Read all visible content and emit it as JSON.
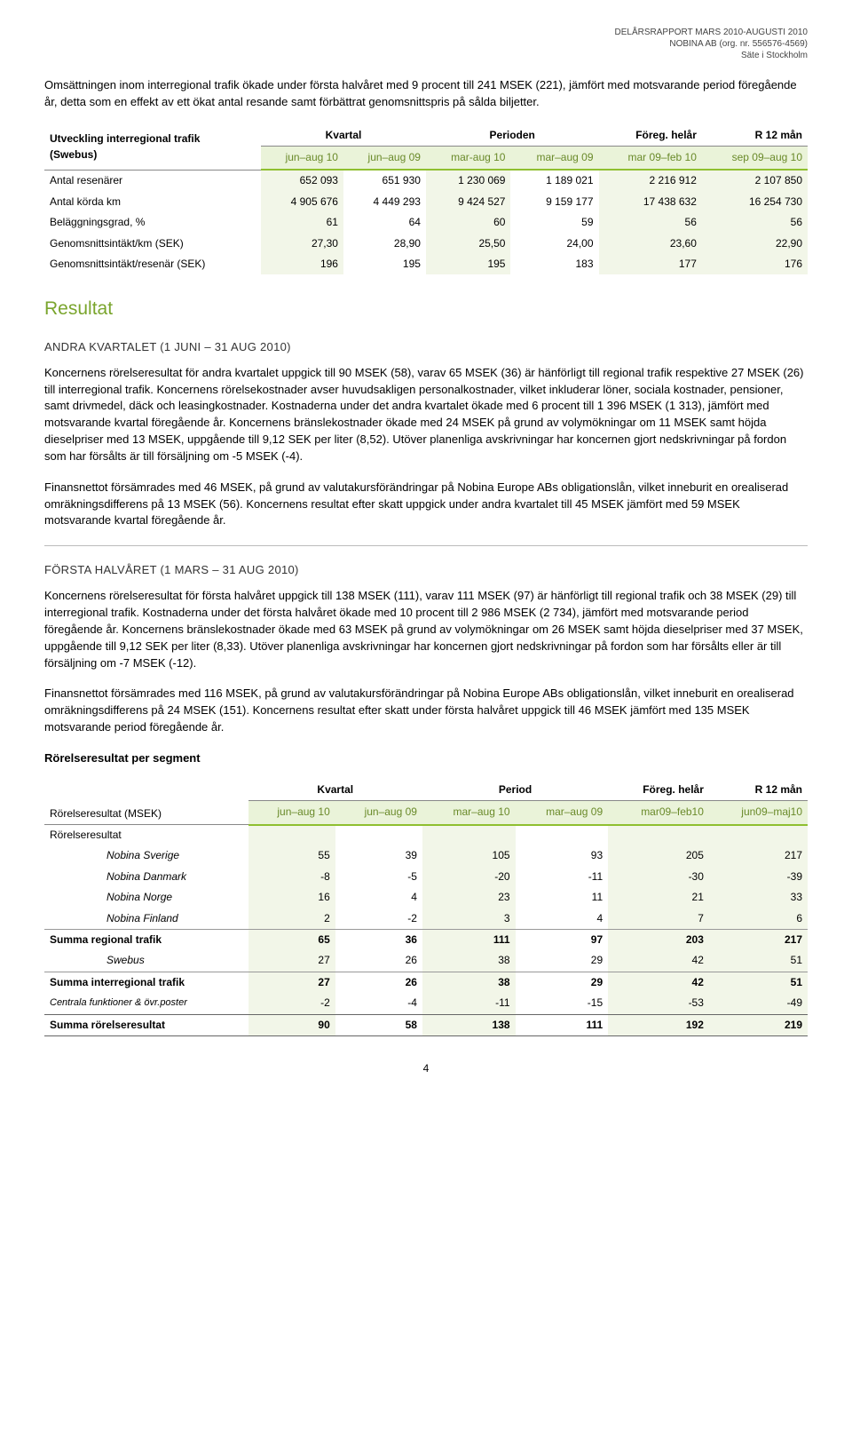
{
  "accent_green": "#8fbf2f",
  "shade_bg": "#f2f6e8",
  "subheader_bg": "#eaf3d9",
  "subheader_color": "#6a8a2a",
  "corp": {
    "l1": "DELÅRSRAPPORT MARS 2010-AUGUSTI 2010",
    "l2": "NOBINA AB (org. nr. 556576-4569)",
    "l3": "Säte i Stockholm"
  },
  "intro_para": "Omsättningen inom interregional trafik ökade under första halvåret med 9 procent till 241 MSEK (221), jämfört med motsvarande period föregående år, detta som en effekt av ett ökat antal resande samt förbättrat genomsnittspris på sålda biljetter.",
  "table1": {
    "title_l1": "Utveckling interregional trafik",
    "title_l2": "(Swebus)",
    "grp": [
      "Kvartal",
      "Perioden",
      "Föreg. helår",
      "R 12 mån"
    ],
    "cols": [
      "jun–aug 10",
      "jun–aug 09",
      "mar-aug 10",
      "mar–aug 09",
      "mar 09–feb 10",
      "sep 09–aug 10"
    ],
    "rows": [
      {
        "label": "Antal resenärer",
        "v": [
          "652 093",
          "651 930",
          "1 230 069",
          "1 189 021",
          "2 216 912",
          "2 107 850"
        ]
      },
      {
        "label": "Antal körda km",
        "v": [
          "4 905 676",
          "4 449 293",
          "9 424 527",
          "9 159 177",
          "17 438 632",
          "16 254 730"
        ]
      },
      {
        "label": "Beläggningsgrad, %",
        "v": [
          "61",
          "64",
          "60",
          "59",
          "56",
          "56"
        ]
      },
      {
        "label": "Genomsnittsintäkt/km (SEK)",
        "v": [
          "27,30",
          "28,90",
          "25,50",
          "24,00",
          "23,60",
          "22,90"
        ]
      },
      {
        "label": "Genomsnittsintäkt/resenär (SEK)",
        "v": [
          "196",
          "195",
          "195",
          "183",
          "177",
          "176"
        ]
      }
    ]
  },
  "resultat_heading": "Resultat",
  "q2_heading": "ANDRA KVARTALET (1 JUNI – 31 AUG 2010)",
  "para_q2_a": "Koncernens rörelseresultat för andra kvartalet uppgick till 90 MSEK (58), varav 65 MSEK (36) är hänförligt till regional trafik respektive 27 MSEK (26) till interregional trafik. Koncernens rörelsekostnader avser huvudsakligen personalkostnader, vilket inkluderar löner, sociala kostnader, pensioner, samt drivmedel, däck och leasingkostnader. Kostnaderna under det andra kvartalet ökade med 6 procent till 1 396 MSEK (1 313), jämfört med motsvarande kvartal föregående år. Koncernens bränslekostnader ökade med 24 MSEK på grund av volymökningar om 11 MSEK samt höjda dieselpriser med 13 MSEK, uppgående till 9,12 SEK per liter (8,52). Utöver planenliga avskrivningar har koncernen gjort nedskrivningar på fordon som har försålts är till försäljning om -5 MSEK (-4).",
  "para_q2_b": "Finansnettot försämrades med 46 MSEK, på grund av valutakursförändringar på Nobina Europe ABs obligationslån, vilket inneburit en orealiserad omräkningsdifferens på 13 MSEK (56). Koncernens resultat efter skatt uppgick under andra kvartalet till 45 MSEK jämfört med 59 MSEK motsvarande kvartal föregående år.",
  "h1_heading": "FÖRSTA HALVÅRET (1 MARS – 31 AUG 2010)",
  "para_h1_a": "Koncernens rörelseresultat för första halvåret uppgick till 138 MSEK (111), varav 111 MSEK (97) är hänförligt till regional trafik och 38 MSEK (29) till interregional trafik. Kostnaderna under det första halvåret ökade med 10 procent till 2 986 MSEK (2 734), jämfört med motsvarande period föregående år. Koncernens bränslekostnader ökade med 63 MSEK på grund av volymökningar om 26 MSEK samt höjda dieselpriser med 37 MSEK, uppgående till 9,12 SEK per liter (8,33). Utöver planenliga avskrivningar har koncernen gjort nedskrivningar på fordon som har försålts eller är till försäljning om -7 MSEK (-12).",
  "para_h1_b": "Finansnettot försämrades med 116 MSEK, på grund av valutakursförändringar på Nobina Europe ABs obligationslån, vilket inneburit en orealiserad omräkningsdifferens på 24 MSEK (151). Koncernens resultat efter skatt under första halvåret uppgick till 46 MSEK jämfört med 135 MSEK motsvarande period föregående år.",
  "seg_title": "Rörelseresultat per segment",
  "table2": {
    "title": "Rörelseresultat (MSEK)",
    "grp": [
      "Kvartal",
      "Period",
      "Föreg. helår",
      "R 12 mån"
    ],
    "cols": [
      "jun–aug 10",
      "jun–aug 09",
      "mar–aug 10",
      "mar–aug 09",
      "mar09–feb10",
      "jun09–maj10"
    ],
    "section_label": "Rörelseresultat",
    "rows_a": [
      {
        "label": "Nobina Sverige",
        "v": [
          "55",
          "39",
          "105",
          "93",
          "205",
          "217"
        ]
      },
      {
        "label": "Nobina Danmark",
        "v": [
          "-8",
          "-5",
          "-20",
          "-11",
          "-30",
          "-39"
        ]
      },
      {
        "label": "Nobina Norge",
        "v": [
          "16",
          "4",
          "23",
          "11",
          "21",
          "33"
        ]
      },
      {
        "label": "Nobina Finland",
        "v": [
          "2",
          "-2",
          "3",
          "4",
          "7",
          "6"
        ]
      }
    ],
    "sum1": {
      "label": "Summa regional trafik",
      "v": [
        "65",
        "36",
        "111",
        "97",
        "203",
        "217"
      ]
    },
    "rows_b": [
      {
        "label": "Swebus",
        "v": [
          "27",
          "26",
          "38",
          "29",
          "42",
          "51"
        ]
      }
    ],
    "sum2": {
      "label": "Summa interregional trafik",
      "v": [
        "27",
        "26",
        "38",
        "29",
        "42",
        "51"
      ]
    },
    "central": {
      "label": "Centrala funktioner & övr.poster",
      "v": [
        "-2",
        "-4",
        "-11",
        "-15",
        "-53",
        "-49"
      ]
    },
    "sum3": {
      "label": "Summa rörelseresultat",
      "v": [
        "90",
        "58",
        "138",
        "111",
        "192",
        "219"
      ]
    }
  },
  "pagenum": "4"
}
